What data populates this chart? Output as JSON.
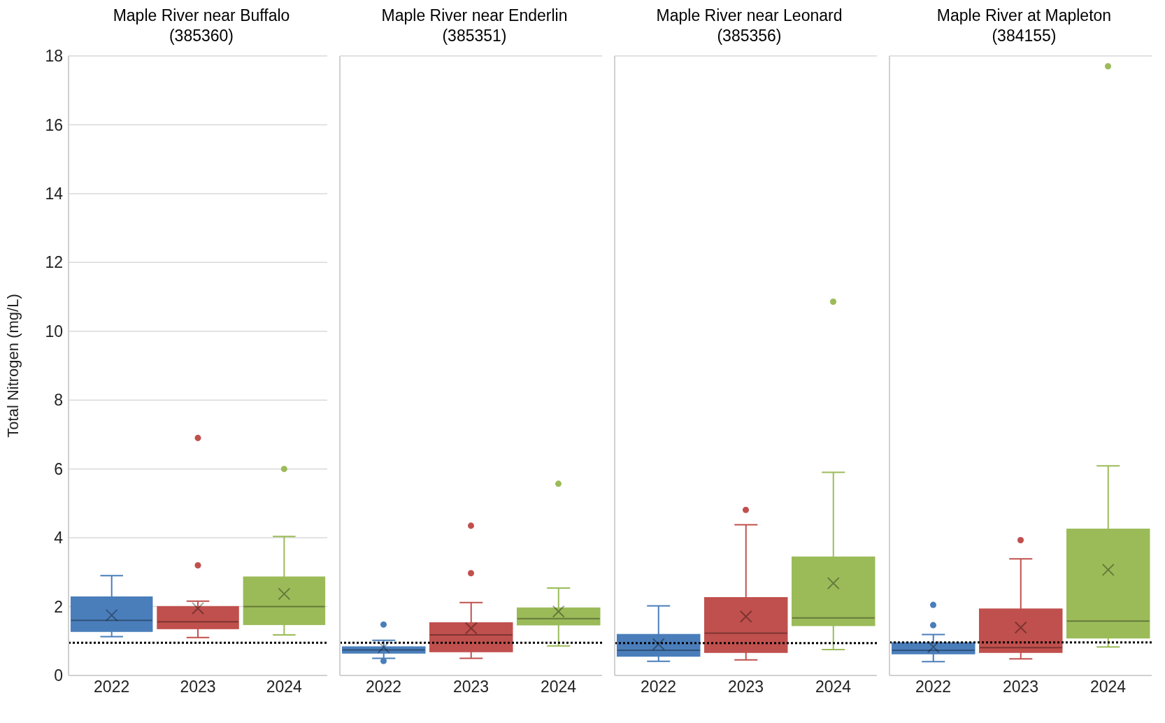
{
  "chart_data": [
    {
      "type": "box",
      "title": "Maple River near Buffalo\n(385360)",
      "ylabel": "Total Nitrogen (mg/L)",
      "categories": [
        "2022",
        "2023",
        "2024"
      ],
      "colors": [
        "#4a7ebb",
        "#c0504d",
        "#9bbb59"
      ],
      "ylim": [
        0,
        18
      ],
      "yticks": [
        0,
        2,
        4,
        6,
        8,
        10,
        12,
        14,
        16,
        18
      ],
      "grid": "y",
      "boxes": [
        {
          "low": 1.13,
          "q1": 1.28,
          "median": 1.6,
          "q3": 2.28,
          "high": 2.9,
          "mean": 1.75
        },
        {
          "low": 1.1,
          "q1": 1.36,
          "median": 1.56,
          "q3": 2.0,
          "high": 2.16,
          "mean": 1.95,
          "outliers": [
            6.9,
            3.2
          ]
        },
        {
          "low": 1.18,
          "q1": 1.48,
          "median": 2.0,
          "q3": 2.86,
          "high": 4.04,
          "mean": 2.37,
          "outliers": [
            6.0
          ]
        }
      ],
      "ref_lines": [
        {
          "axis": "y",
          "value": 0.95,
          "line_style": "dotted",
          "color": "#000000"
        }
      ]
    },
    {
      "type": "box",
      "title": "Maple River near Enderlin\n(385351)",
      "categories": [
        "2022",
        "2023",
        "2024"
      ],
      "colors": [
        "#4a7ebb",
        "#c0504d",
        "#9bbb59"
      ],
      "ylim": [
        0,
        18
      ],
      "yticks": [
        0,
        2,
        4,
        6,
        8,
        10,
        12,
        14,
        16,
        18
      ],
      "grid": "y",
      "tick_labels": "x",
      "boxes": [
        {
          "low": 0.5,
          "q1": 0.65,
          "median": 0.74,
          "q3": 0.83,
          "high": 1.02,
          "mean": 0.82,
          "outliers": [
            1.48,
            0.42
          ]
        },
        {
          "low": 0.5,
          "q1": 0.69,
          "median": 1.18,
          "q3": 1.53,
          "high": 2.12,
          "mean": 1.37,
          "outliers": [
            4.35,
            2.97
          ]
        },
        {
          "low": 0.86,
          "q1": 1.47,
          "median": 1.65,
          "q3": 1.96,
          "high": 2.54,
          "mean": 1.86,
          "outliers": [
            5.57
          ]
        }
      ],
      "ref_lines": [
        {
          "axis": "y",
          "value": 0.95,
          "line_style": "dotted",
          "color": "#000000"
        }
      ]
    },
    {
      "type": "box",
      "title": "Maple River near Leonard\n(385356)",
      "categories": [
        "2022",
        "2023",
        "2024"
      ],
      "colors": [
        "#4a7ebb",
        "#c0504d",
        "#9bbb59"
      ],
      "ylim": [
        0,
        18
      ],
      "yticks": [
        0,
        2,
        4,
        6,
        8,
        10,
        12,
        14,
        16,
        18
      ],
      "grid": "y",
      "tick_labels": "x",
      "boxes": [
        {
          "low": 0.41,
          "q1": 0.56,
          "median": 0.73,
          "q3": 1.19,
          "high": 2.02,
          "mean": 0.91
        },
        {
          "low": 0.45,
          "q1": 0.67,
          "median": 1.23,
          "q3": 2.26,
          "high": 4.38,
          "mean": 1.71,
          "outliers": [
            4.81
          ]
        },
        {
          "low": 0.75,
          "q1": 1.45,
          "median": 1.67,
          "q3": 3.44,
          "high": 5.9,
          "mean": 2.68,
          "outliers": [
            10.86
          ]
        }
      ],
      "ref_lines": [
        {
          "axis": "y",
          "value": 0.94,
          "line_style": "dotted",
          "color": "#000000"
        }
      ]
    },
    {
      "type": "box",
      "title": "Maple River at Mapleton\n(384155)",
      "categories": [
        "2022",
        "2023",
        "2024"
      ],
      "colors": [
        "#4a7ebb",
        "#c0504d",
        "#9bbb59"
      ],
      "ylim": [
        0,
        18
      ],
      "yticks": [
        0,
        2,
        4,
        6,
        8,
        10,
        12,
        14,
        16,
        18
      ],
      "grid": "y",
      "tick_labels": "x",
      "boxes": [
        {
          "low": 0.4,
          "q1": 0.63,
          "median": 0.73,
          "q3": 0.95,
          "high": 1.19,
          "mean": 0.83,
          "outliers": [
            2.05,
            1.46
          ]
        },
        {
          "low": 0.48,
          "q1": 0.67,
          "median": 0.81,
          "q3": 1.93,
          "high": 3.39,
          "mean": 1.39,
          "outliers": [
            3.93
          ]
        },
        {
          "low": 0.83,
          "q1": 1.09,
          "median": 1.58,
          "q3": 4.25,
          "high": 6.09,
          "mean": 3.07,
          "outliers": [
            17.7
          ]
        }
      ],
      "ref_lines": [
        {
          "axis": "y",
          "value": 0.96,
          "line_style": "dotted",
          "color": "#000000"
        }
      ]
    }
  ]
}
